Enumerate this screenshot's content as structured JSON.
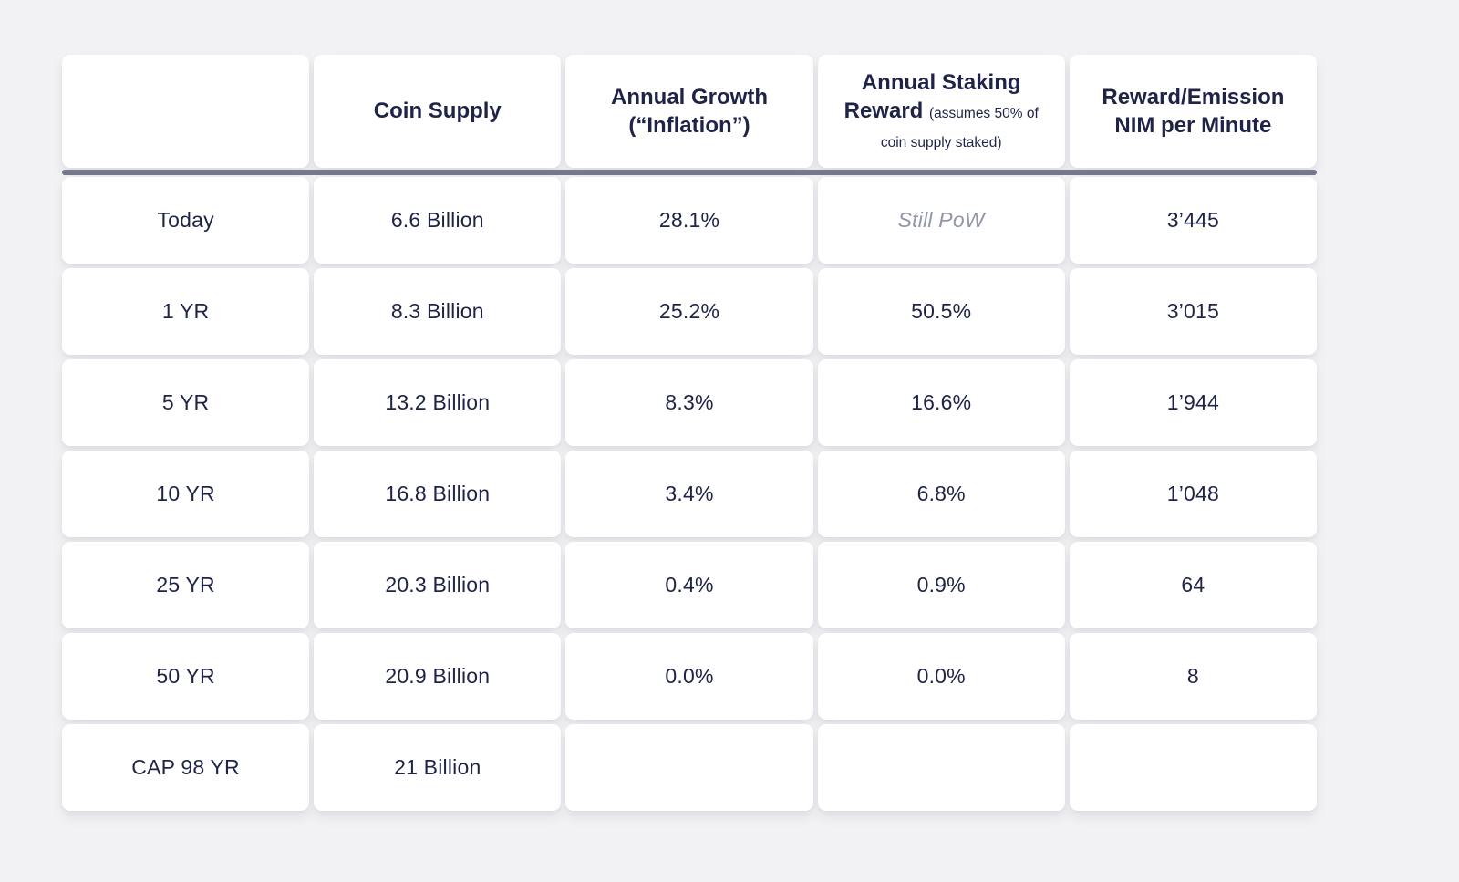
{
  "chart_data": {
    "type": "table",
    "headers": {
      "col1": "",
      "col2": "Coin Supply",
      "col3": "Annual Growth (“Inflation”)",
      "col4_main": "Annual Staking Reward",
      "col4_note": "(assumes 50% of coin supply staked)",
      "col5": "Reward/Emission NIM per Minute"
    },
    "rows": [
      {
        "period": "Today",
        "coin_supply": "6.6 Billion",
        "annual_growth": "28.1%",
        "staking_reward": "Still PoW",
        "nim_per_minute": "3’445"
      },
      {
        "period": "1 YR",
        "coin_supply": "8.3 Billion",
        "annual_growth": "25.2%",
        "staking_reward": "50.5%",
        "nim_per_minute": "3’015"
      },
      {
        "period": "5 YR",
        "coin_supply": "13.2 Billion",
        "annual_growth": "8.3%",
        "staking_reward": "16.6%",
        "nim_per_minute": "1’944"
      },
      {
        "period": "10 YR",
        "coin_supply": "16.8 Billion",
        "annual_growth": "3.4%",
        "staking_reward": "6.8%",
        "nim_per_minute": "1’048"
      },
      {
        "period": "25 YR",
        "coin_supply": "20.3 Billion",
        "annual_growth": "0.4%",
        "staking_reward": "0.9%",
        "nim_per_minute": "64"
      },
      {
        "period": "50 YR",
        "coin_supply": "20.9 Billion",
        "annual_growth": "0.0%",
        "staking_reward": "0.0%",
        "nim_per_minute": "8"
      },
      {
        "period": "CAP 98 YR",
        "coin_supply": "21 Billion",
        "annual_growth": "",
        "staking_reward": "",
        "nim_per_minute": ""
      }
    ]
  },
  "colors": {
    "text": "#1f2348",
    "muted_text": "#9296a9",
    "separator": "#75788b",
    "background": "#f2f2f4",
    "cell_background": "#ffffff"
  }
}
